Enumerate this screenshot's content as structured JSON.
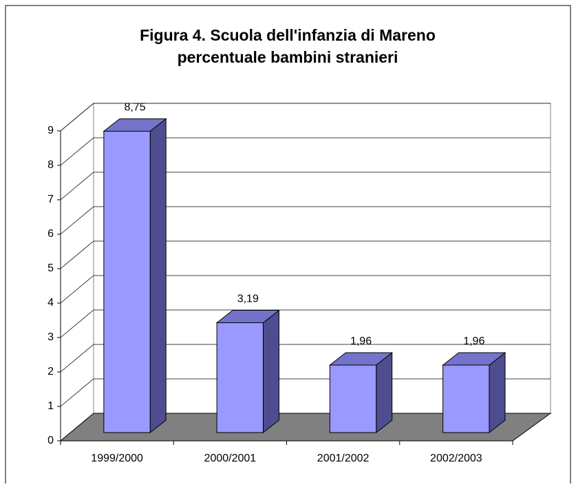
{
  "chart_data": {
    "type": "bar3d",
    "title": "Figura 4. Scuola dell'infanzia di Mareno",
    "subtitle": "percentuale bambini stranieri",
    "categories": [
      "1999/2000",
      "2000/2001",
      "2001/2002",
      "2002/2003"
    ],
    "values": [
      8.75,
      3.19,
      1.96,
      1.96
    ],
    "value_labels": [
      "8,75",
      "3,19",
      "1,96",
      "1,96"
    ],
    "color": "#9999ff",
    "ylim": [
      0,
      9
    ],
    "yticks": [
      0,
      1,
      2,
      3,
      4,
      5,
      6,
      7,
      8,
      9
    ],
    "grid": true
  }
}
